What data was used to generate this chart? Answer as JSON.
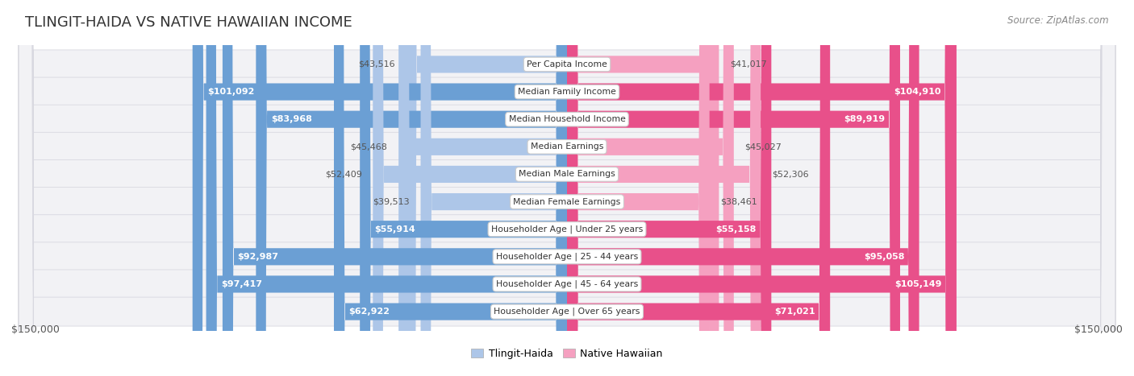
{
  "title": "TLINGIT-HAIDA VS NATIVE HAWAIIAN INCOME",
  "source": "Source: ZipAtlas.com",
  "categories": [
    "Per Capita Income",
    "Median Family Income",
    "Median Household Income",
    "Median Earnings",
    "Median Male Earnings",
    "Median Female Earnings",
    "Householder Age | Under 25 years",
    "Householder Age | 25 - 44 years",
    "Householder Age | 45 - 64 years",
    "Householder Age | Over 65 years"
  ],
  "tlingit_values": [
    43516,
    101092,
    83968,
    45468,
    52409,
    39513,
    55914,
    92987,
    97417,
    62922
  ],
  "hawaiian_values": [
    41017,
    104910,
    89919,
    45027,
    52306,
    38461,
    55158,
    95058,
    105149,
    71021
  ],
  "tlingit_labels": [
    "$43,516",
    "$101,092",
    "$83,968",
    "$45,468",
    "$52,409",
    "$39,513",
    "$55,914",
    "$92,987",
    "$97,417",
    "$62,922"
  ],
  "hawaiian_labels": [
    "$41,017",
    "$104,910",
    "$89,919",
    "$45,027",
    "$52,306",
    "$38,461",
    "$55,158",
    "$95,058",
    "$105,149",
    "$71,021"
  ],
  "max_value": 150000,
  "tlingit_color_light": "#adc6e8",
  "tlingit_color_dark": "#6b9fd4",
  "hawaiian_color_light": "#f5a0c0",
  "hawaiian_color_dark": "#e8508a",
  "bg_color": "#ffffff",
  "row_bg_color": "#f2f2f5",
  "row_border_color": "#d8d8e0",
  "legend_tlingit": "Tlingit-Haida",
  "legend_hawaiian": "Native Hawaiian",
  "axis_label_left": "$150,000",
  "axis_label_right": "$150,000",
  "title_fontsize": 13,
  "source_fontsize": 8.5,
  "label_fontsize": 8,
  "category_fontsize": 7.8,
  "axis_fontsize": 9,
  "legend_fontsize": 9,
  "inside_threshold": 55000,
  "cat_box_color": "#ffffff",
  "cat_box_edge": "#cccccc",
  "outside_label_color": "#555555",
  "inside_label_color": "#ffffff"
}
